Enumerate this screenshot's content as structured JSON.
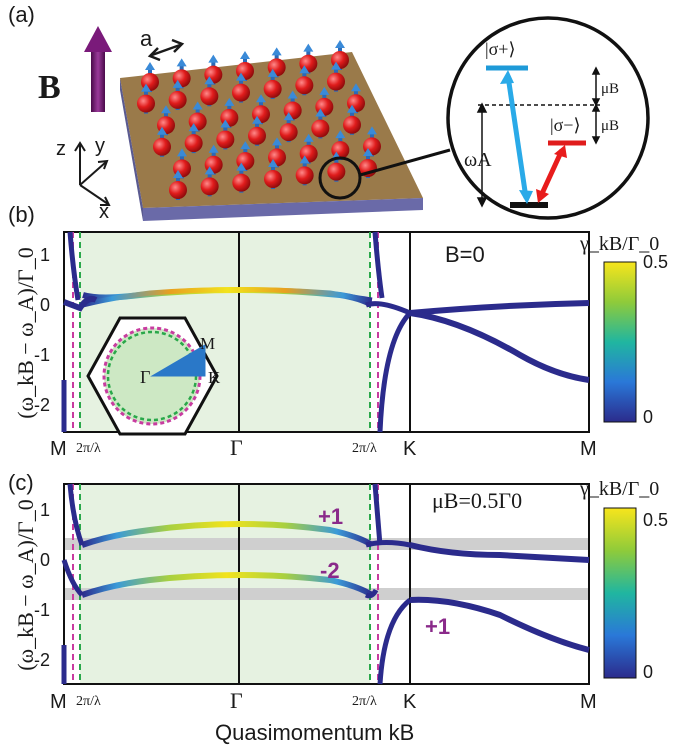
{
  "panel_labels": {
    "a": "(a)",
    "b": "(b)",
    "c": "(c)"
  },
  "panel_a": {
    "field_label": "B",
    "lattice_constant": "a",
    "axes": {
      "x": "x",
      "y": "y",
      "z": "z"
    },
    "levels": {
      "sigma_plus": "|σ+⟩",
      "sigma_minus": "|σ−⟩",
      "omega_A": "ωA",
      "muB_upper": "μB",
      "muB_lower": "μB"
    },
    "colors": {
      "substrate": "#9a7a4a",
      "atom": "#e02020",
      "spin": "#3a8ad8",
      "arrow": "#6a1a6a"
    }
  },
  "panel_b": {
    "ylabel": "(ω_kB − ω_A)/Γ_0",
    "yticks": [
      "1",
      "0",
      "-1",
      "-2"
    ],
    "xticks": [
      "M",
      "2π/λ",
      "Γ",
      "2π/λ",
      "K",
      "M"
    ],
    "annotation": "B=0",
    "inset_labels": {
      "gamma": "Γ",
      "m": "M",
      "k": "K"
    },
    "colorbar": {
      "label": "γ_kB/Γ_0",
      "ticks": [
        "0.5",
        "0"
      ]
    }
  },
  "panel_c": {
    "ylabel": "(ω_kB − ω_A)/Γ_0",
    "yticks": [
      "1",
      "0",
      "-1",
      "-2"
    ],
    "xticks": [
      "M",
      "2π/λ",
      "Γ",
      "2π/λ",
      "K",
      "M"
    ],
    "annotation": "μB=0.5Γ0",
    "chern_labels": {
      "upper": "+1",
      "middle": "-2",
      "lower": "+1"
    },
    "colorbar": {
      "label": "γ_kB/Γ_0",
      "ticks": [
        "0.5",
        "0"
      ]
    },
    "xlabel": "Quasimomentum  kB"
  },
  "colors": {
    "band_dark": "#2b2b8c",
    "light_cone_fill": "#e6f2e1",
    "line_magenta": "#c83ca0",
    "line_green": "#2aa84a",
    "gap_band": "#cfcfcf"
  }
}
